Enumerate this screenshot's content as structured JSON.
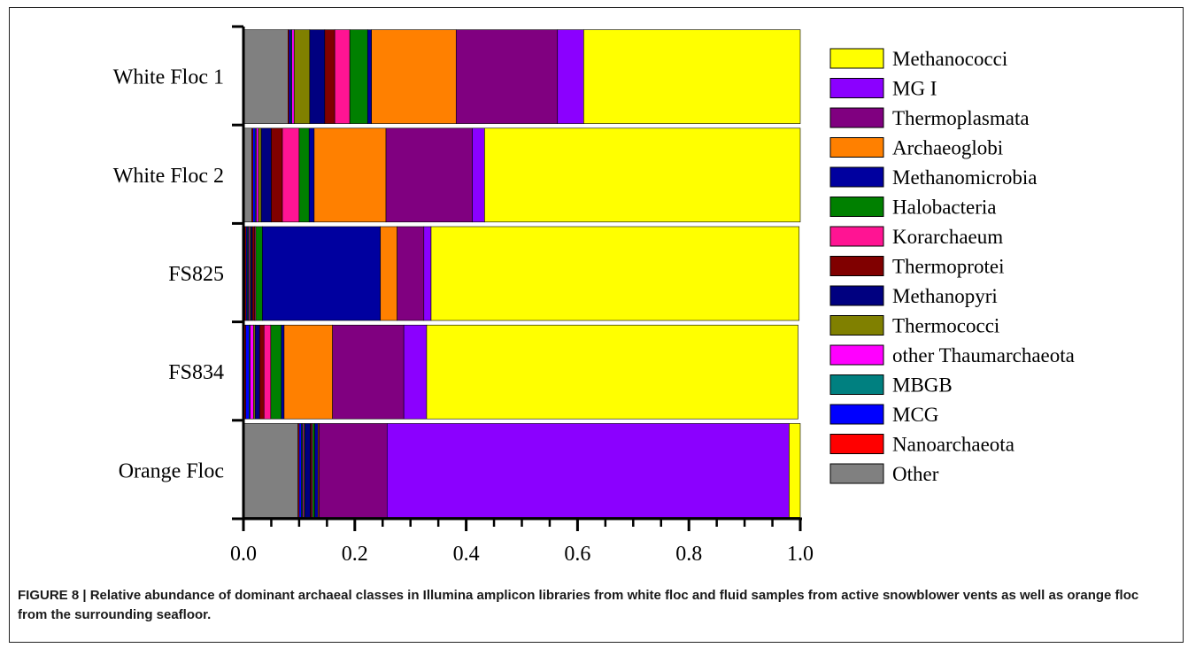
{
  "figure": {
    "caption": "FIGURE 8 | Relative abundance of dominant archaeal classes in Illumina amplicon libraries from white floc and fluid samples from active snowblower vents as well as orange floc from the surrounding seafloor."
  },
  "chart_data": {
    "type": "bar",
    "orientation": "horizontal",
    "stacked": true,
    "categories": [
      "White Floc 1",
      "White Floc 2",
      "FS825",
      "FS834",
      "Orange Floc"
    ],
    "xlim": [
      0.0,
      1.0
    ],
    "xticks": [
      0.0,
      0.2,
      0.4,
      0.6,
      0.8,
      1.0
    ],
    "xtick_labels": [
      "0.0",
      "0.2",
      "0.4",
      "0.6",
      "0.8",
      "1.0"
    ],
    "xlabel": "",
    "ylabel": "",
    "grid": false,
    "legend_position": "right",
    "series": [
      {
        "name": "Other",
        "color": "#808080",
        "values": [
          0.08,
          0.015,
          0.003,
          0.002,
          0.098
        ]
      },
      {
        "name": "Nanoarchaeota",
        "color": "#ff0000",
        "values": [
          0.002,
          0.002,
          0.002,
          0.002,
          0.002
        ]
      },
      {
        "name": "MCG",
        "color": "#0000ff",
        "values": [
          0.003,
          0.004,
          0.002,
          0.006,
          0.004
        ]
      },
      {
        "name": "MBGB",
        "color": "#008080",
        "values": [
          0.002,
          0.002,
          0.002,
          0.002,
          0.002
        ]
      },
      {
        "name": "other Thaumarchaeota",
        "color": "#ff00ff",
        "values": [
          0.004,
          0.004,
          0.002,
          0.006,
          0.002
        ]
      },
      {
        "name": "Thermococci",
        "color": "#808000",
        "values": [
          0.028,
          0.005,
          0.002,
          0.003,
          0.002
        ]
      },
      {
        "name": "Methanopyri",
        "color": "#000080",
        "values": [
          0.027,
          0.018,
          0.003,
          0.008,
          0.01
        ]
      },
      {
        "name": "Thermoprotei",
        "color": "#800000",
        "values": [
          0.018,
          0.02,
          0.004,
          0.008,
          0.002
        ]
      },
      {
        "name": "Korarchaeum",
        "color": "#ff1493",
        "values": [
          0.027,
          0.03,
          0.002,
          0.012,
          0.002
        ]
      },
      {
        "name": "Halobacteria",
        "color": "#008000",
        "values": [
          0.032,
          0.018,
          0.012,
          0.019,
          0.004
        ]
      },
      {
        "name": "Methanomicrobia",
        "color": "#00009f",
        "values": [
          0.007,
          0.009,
          0.212,
          0.005,
          0.006
        ]
      },
      {
        "name": "Archaeoglobi",
        "color": "#ff8000",
        "values": [
          0.152,
          0.129,
          0.03,
          0.087,
          0.002
        ]
      },
      {
        "name": "Thermoplasmata",
        "color": "#800080",
        "values": [
          0.182,
          0.155,
          0.048,
          0.128,
          0.122
        ]
      },
      {
        "name": "MG I",
        "color": "#8b00ff",
        "values": [
          0.047,
          0.022,
          0.013,
          0.041,
          0.722
        ]
      },
      {
        "name": "Methanococci",
        "color": "#ffff00",
        "values": [
          0.389,
          0.567,
          0.661,
          0.667,
          0.02
        ]
      }
    ],
    "legend_order": [
      "Methanococci",
      "MG I",
      "Thermoplasmata",
      "Archaeoglobi",
      "Methanomicrobia",
      "Halobacteria",
      "Korarchaeum",
      "Thermoprotei",
      "Methanopyri",
      "Thermococci",
      "other Thaumarchaeota",
      "MBGB",
      "MCG",
      "Nanoarchaeota",
      "Other"
    ]
  }
}
